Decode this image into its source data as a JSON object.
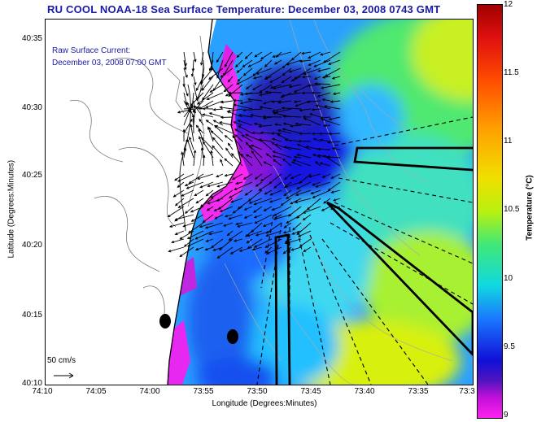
{
  "title": "RU COOL  NOAA-18  Sea Surface Temperature:  December 03, 2008 0743 GMT",
  "overlay": {
    "line1": "Raw Surface Current:",
    "line2": "December 03, 2008 07:00 GMT"
  },
  "y_axis": {
    "title": "Latitude (Degrees:Minutes)",
    "ticks": [
      "40:35",
      "40:30",
      "40:25",
      "40:20",
      "40:15",
      "40:10"
    ]
  },
  "x_axis": {
    "title": "Longitude (Degrees:Minutes)",
    "ticks": [
      "74:10",
      "74:05",
      "74:00",
      "73:55",
      "73:50",
      "73:45",
      "73:40",
      "73:35",
      "73:3"
    ]
  },
  "colorbar": {
    "title": "Temperature (°C)",
    "ticks": [
      "12",
      "11.5",
      "11",
      "10.5",
      "10",
      "9.5",
      "9"
    ],
    "min": 9,
    "max": 12
  },
  "scale": {
    "label": "50 cm/s"
  },
  "colors": {
    "title": "#1a1aa8",
    "coast": "#000000",
    "land": "#ffffff"
  }
}
